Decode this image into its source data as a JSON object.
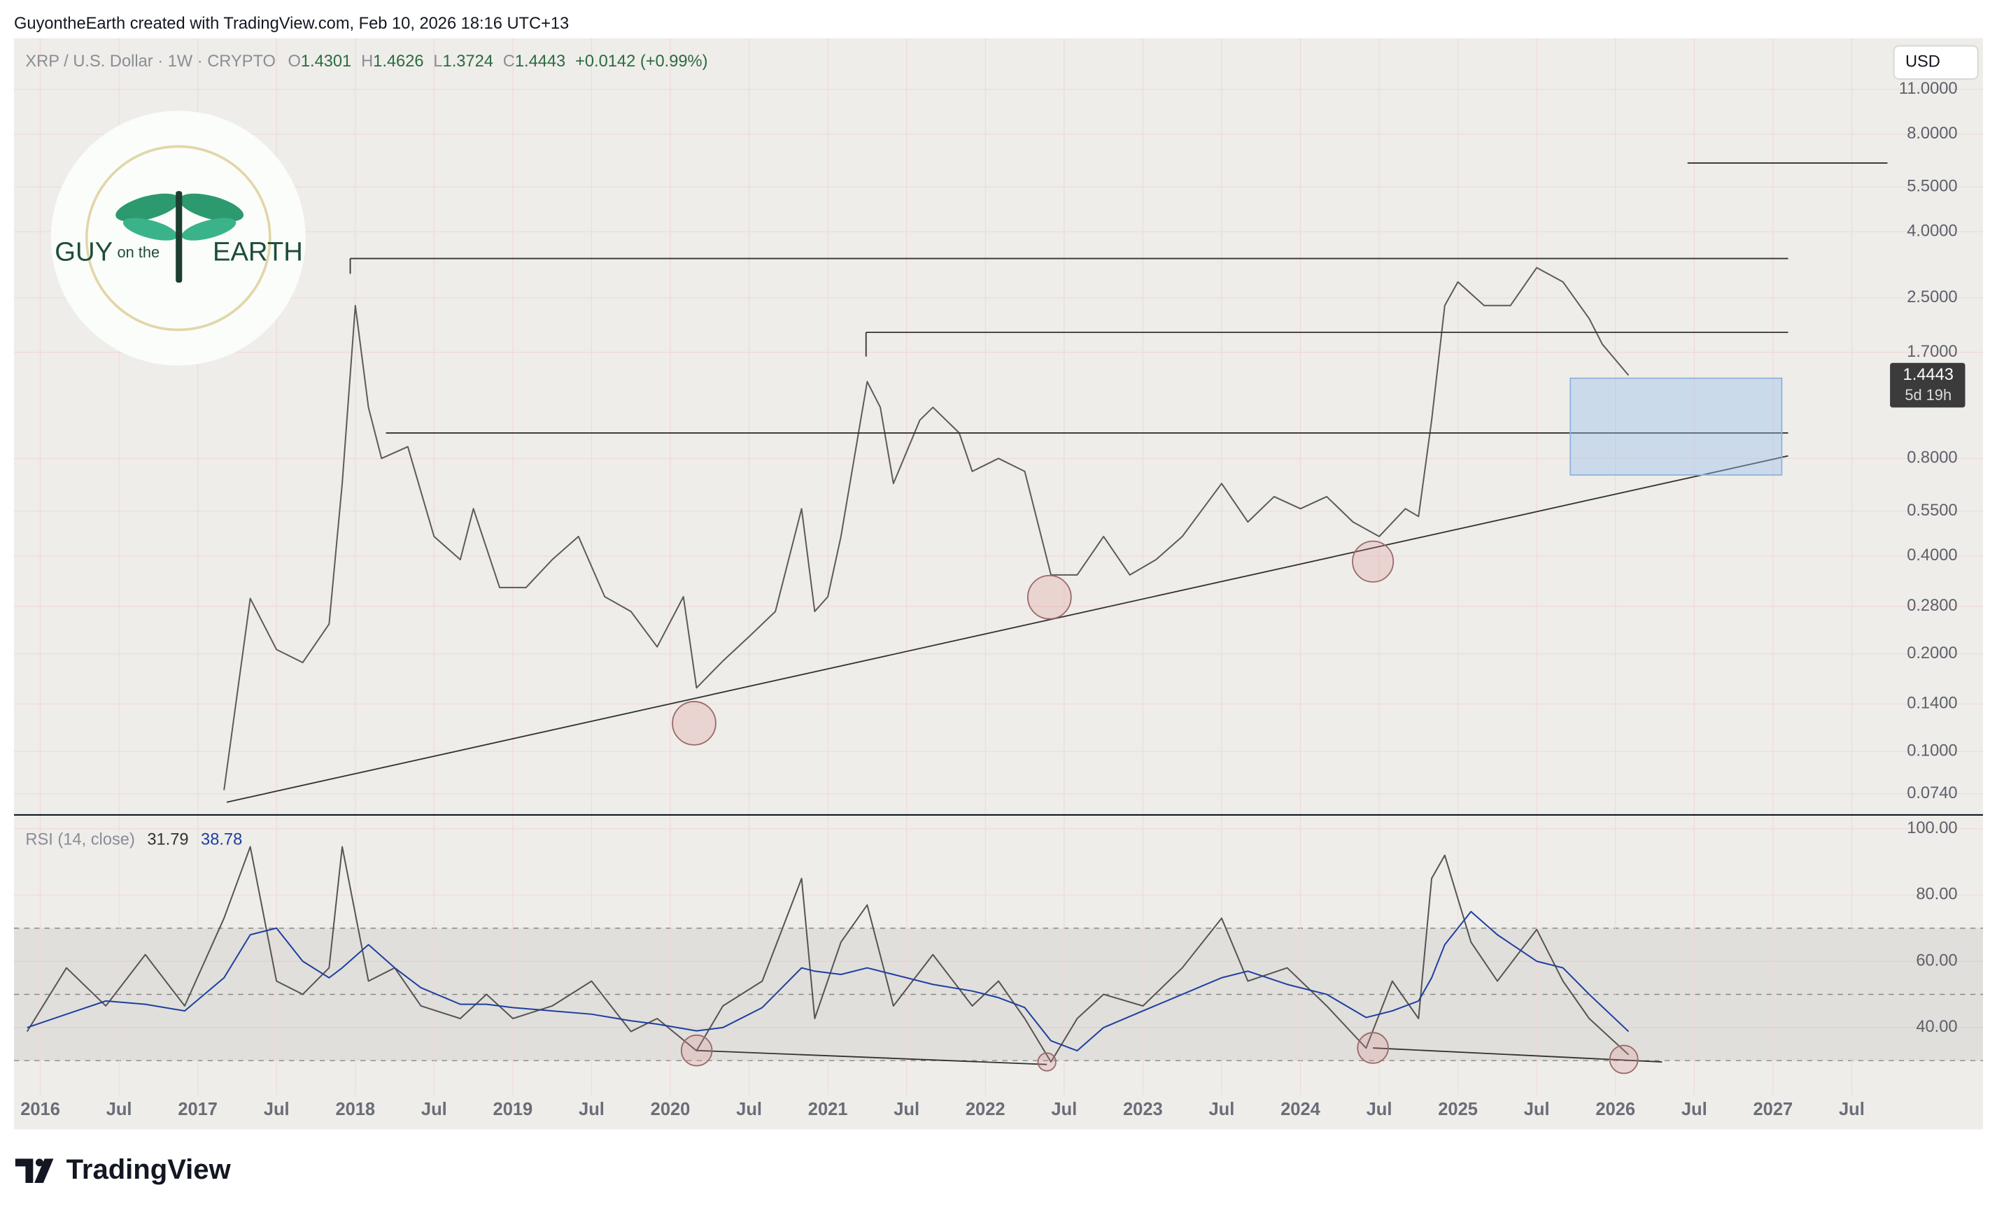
{
  "header": {
    "attribution": "GuyontheEarth created with TradingView.com, Feb 10, 2026 18:16 UTC+13"
  },
  "legend": {
    "symbol": "XRP / U.S. Dollar · 1W · CRYPTO",
    "ohlc": [
      {
        "label": "O",
        "value": "1.4301"
      },
      {
        "label": "H",
        "value": "1.4626"
      },
      {
        "label": "L",
        "value": "1.3724"
      },
      {
        "label": "C",
        "value": "1.4443"
      }
    ],
    "change": "+0.0142 (+0.99%)",
    "indicator": "RSI (14, close)",
    "indicator_values": [
      "31.79",
      "38.78"
    ]
  },
  "currency_button": "USD",
  "last_price": {
    "price": "1.4443",
    "countdown": "5d 19h"
  },
  "logo": {
    "line1": "GUY",
    "line2": "on the",
    "line3": "EARTH"
  },
  "footer": {
    "brand": "TradingView"
  },
  "chart_data": [
    {
      "type": "line",
      "log_scale": true,
      "grid": true,
      "xlim": [
        "2015-11",
        "2028-05"
      ],
      "ylim": [
        0.0637,
        15.8
      ],
      "yticks": [
        {
          "value": 11,
          "label": "11.0000"
        },
        {
          "value": 8,
          "label": "8.0000"
        },
        {
          "value": 5.5,
          "label": "5.5000"
        },
        {
          "value": 4,
          "label": "4.0000"
        },
        {
          "value": 2.5,
          "label": "2.5000"
        },
        {
          "value": 1.7,
          "label": "1.7000"
        },
        {
          "value": 0.8,
          "label": "0.8000"
        },
        {
          "value": 0.55,
          "label": "0.5500"
        },
        {
          "value": 0.4,
          "label": "0.4000"
        },
        {
          "value": 0.28,
          "label": "0.2800"
        },
        {
          "value": 0.2,
          "label": "0.2000"
        },
        {
          "value": 0.14,
          "label": "0.1400"
        },
        {
          "value": 0.1,
          "label": "0.1000"
        },
        {
          "value": 0.074,
          "label": "0.0740"
        }
      ],
      "x": [
        "2017-03",
        "2017-05",
        "2017-07",
        "2017-09",
        "2017-11",
        "2017-12",
        "2018-01",
        "2018-02",
        "2018-03",
        "2018-05",
        "2018-07",
        "2018-09",
        "2018-10",
        "2018-12",
        "2019-02",
        "2019-04",
        "2019-06",
        "2019-08",
        "2019-10",
        "2019-12",
        "2020-02",
        "2020-03",
        "2020-05",
        "2020-07",
        "2020-09",
        "2020-11",
        "2020-12",
        "2021-01",
        "2021-02",
        "2021-04",
        "2021-05",
        "2021-06",
        "2021-08",
        "2021-09",
        "2021-11",
        "2021-12",
        "2022-02",
        "2022-04",
        "2022-06",
        "2022-08",
        "2022-10",
        "2022-12",
        "2023-02",
        "2023-04",
        "2023-07",
        "2023-09",
        "2023-11",
        "2024-01",
        "2024-03",
        "2024-05",
        "2024-07",
        "2024-09",
        "2024-10",
        "2024-11",
        "2024-12",
        "2025-01",
        "2025-03",
        "2025-05",
        "2025-07",
        "2025-09",
        "2025-11",
        "2025-12",
        "2026-02"
      ],
      "series": [
        {
          "name": "XRP / U.S. Dollar",
          "color": "#5b5b5b",
          "values": [
            0.076,
            0.296,
            0.206,
            0.188,
            0.247,
            0.67,
            2.37,
            1.15,
            0.8,
            0.87,
            0.46,
            0.39,
            0.56,
            0.32,
            0.32,
            0.39,
            0.46,
            0.3,
            0.27,
            0.21,
            0.3,
            0.157,
            0.19,
            0.226,
            0.27,
            0.56,
            0.27,
            0.3,
            0.46,
            1.38,
            1.15,
            0.67,
            1.05,
            1.15,
            0.96,
            0.73,
            0.8,
            0.73,
            0.35,
            0.35,
            0.46,
            0.35,
            0.39,
            0.46,
            0.67,
            0.51,
            0.61,
            0.56,
            0.61,
            0.51,
            0.46,
            0.56,
            0.53,
            1.05,
            2.37,
            2.8,
            2.37,
            2.37,
            3.1,
            2.8,
            2.16,
            1.8,
            1.4443
          ]
        }
      ]
    },
    {
      "type": "line",
      "grid": true,
      "xlim": [
        "2015-11",
        "2028-05"
      ],
      "ylim": [
        19.6,
        104.2
      ],
      "yticks": [
        {
          "value": 100,
          "label": "100.00"
        },
        {
          "value": 80,
          "label": "80.00"
        },
        {
          "value": 60,
          "label": "60.00"
        },
        {
          "value": 40,
          "label": "40.00"
        }
      ],
      "levels": [
        70,
        50,
        30
      ],
      "xticks": [
        {
          "value": "2016-01",
          "label": "2016"
        },
        {
          "value": "2016-07",
          "label": "Jul"
        },
        {
          "value": "2017-01",
          "label": "2017"
        },
        {
          "value": "2017-07",
          "label": "Jul"
        },
        {
          "value": "2018-01",
          "label": "2018"
        },
        {
          "value": "2018-07",
          "label": "Jul"
        },
        {
          "value": "2019-01",
          "label": "2019"
        },
        {
          "value": "2019-07",
          "label": "Jul"
        },
        {
          "value": "2020-01",
          "label": "2020"
        },
        {
          "value": "2020-07",
          "label": "Jul"
        },
        {
          "value": "2021-01",
          "label": "2021"
        },
        {
          "value": "2021-07",
          "label": "Jul"
        },
        {
          "value": "2022-01",
          "label": "2022"
        },
        {
          "value": "2022-07",
          "label": "Jul"
        },
        {
          "value": "2023-01",
          "label": "2023"
        },
        {
          "value": "2023-07",
          "label": "Jul"
        },
        {
          "value": "2024-01",
          "label": "2024"
        },
        {
          "value": "2024-07",
          "label": "Jul"
        },
        {
          "value": "2025-01",
          "label": "2025"
        },
        {
          "value": "2025-07",
          "label": "Jul"
        },
        {
          "value": "2026-01",
          "label": "2026"
        },
        {
          "value": "2026-07",
          "label": "Jul"
        },
        {
          "value": "2027-01",
          "label": "2027"
        },
        {
          "value": "2027-07",
          "label": "Jul"
        }
      ],
      "x": [
        "2015-12",
        "2016-03",
        "2016-06",
        "2016-09",
        "2016-12",
        "2017-03",
        "2017-05",
        "2017-07",
        "2017-09",
        "2017-11",
        "2017-12",
        "2018-02",
        "2018-04",
        "2018-06",
        "2018-09",
        "2018-11",
        "2019-01",
        "2019-04",
        "2019-07",
        "2019-10",
        "2019-12",
        "2020-03",
        "2020-05",
        "2020-08",
        "2020-11",
        "2020-12",
        "2021-02",
        "2021-04",
        "2021-06",
        "2021-09",
        "2021-12",
        "2022-02",
        "2022-04",
        "2022-06",
        "2022-08",
        "2022-10",
        "2023-01",
        "2023-04",
        "2023-07",
        "2023-09",
        "2023-12",
        "2024-03",
        "2024-06",
        "2024-08",
        "2024-10",
        "2024-11",
        "2024-12",
        "2025-02",
        "2025-04",
        "2025-07",
        "2025-09",
        "2025-11",
        "2026-02"
      ],
      "series": [
        {
          "name": "RSI",
          "color": "#555555",
          "values": [
            38.8,
            58,
            46.5,
            62,
            46.5,
            73,
            94.6,
            54,
            50,
            58,
            94.6,
            54,
            58,
            46.5,
            42.7,
            50,
            42.7,
            46.5,
            54,
            38.8,
            42.7,
            33,
            46.5,
            54,
            85,
            42.7,
            65.8,
            77,
            46.5,
            62,
            46.5,
            54,
            42.7,
            29.6,
            42.7,
            50,
            46.5,
            58,
            73,
            54,
            58,
            46.5,
            33.8,
            54,
            42.7,
            85,
            92,
            65.8,
            54,
            69.6,
            54,
            42.7,
            31.79
          ]
        },
        {
          "name": "RSI-based MA",
          "color": "#1e3fa0",
          "values": [
            40,
            44,
            48,
            47,
            45,
            55,
            68,
            70,
            60,
            55,
            58,
            65,
            58,
            52,
            47,
            47,
            46,
            45,
            44,
            42,
            41,
            39,
            40,
            46,
            58,
            57,
            56,
            58,
            56,
            53,
            51,
            49,
            46,
            36,
            33,
            40,
            45,
            50,
            55,
            57,
            53,
            50,
            43,
            45,
            48,
            55,
            65,
            75,
            68,
            60,
            58,
            50,
            38.78
          ]
        }
      ]
    }
  ]
}
